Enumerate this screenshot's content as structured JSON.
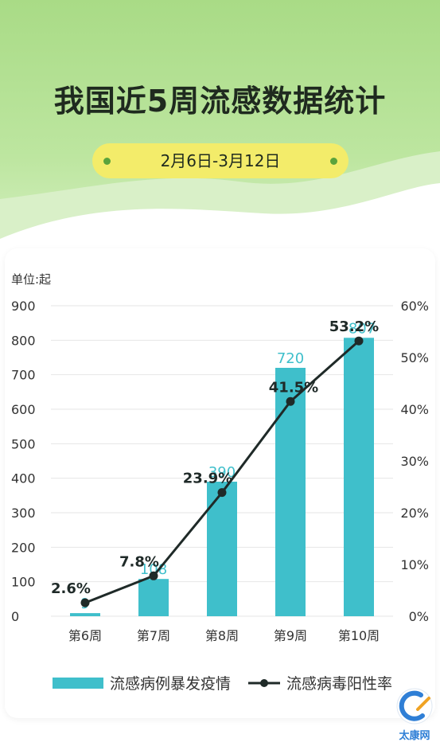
{
  "page": {
    "title": "我国近5周流感数据统计",
    "date_range": "2月6日-3月12日",
    "watermark": "太康网"
  },
  "chart_data": {
    "type": "bar",
    "unit_label": "单位:起",
    "categories": [
      "第6周",
      "第7周",
      "第8周",
      "第9周",
      "第10周"
    ],
    "series": [
      {
        "name": "流感病例暴发疫情",
        "type": "bar",
        "axis": "left",
        "values": [
          9,
          108,
          390,
          720,
          807
        ],
        "color": "#3fbfcb"
      },
      {
        "name": "流感病毒阳性率",
        "type": "line",
        "axis": "right",
        "values": [
          2.6,
          7.8,
          23.9,
          41.5,
          53.2
        ],
        "labels": [
          "2.6%",
          "7.8%",
          "23.9%",
          "41.5%",
          "53.2%"
        ],
        "color": "#1f2a28"
      }
    ],
    "y_left": {
      "ticks": [
        "0",
        "100",
        "200",
        "300",
        "400",
        "500",
        "600",
        "700",
        "800",
        "900"
      ],
      "range": [
        0,
        900
      ]
    },
    "y_right": {
      "ticks": [
        "0%",
        "10%",
        "20%",
        "30%",
        "40%",
        "50%",
        "60%"
      ],
      "range": [
        0,
        60
      ]
    },
    "grid": true,
    "legend": "bottom"
  }
}
